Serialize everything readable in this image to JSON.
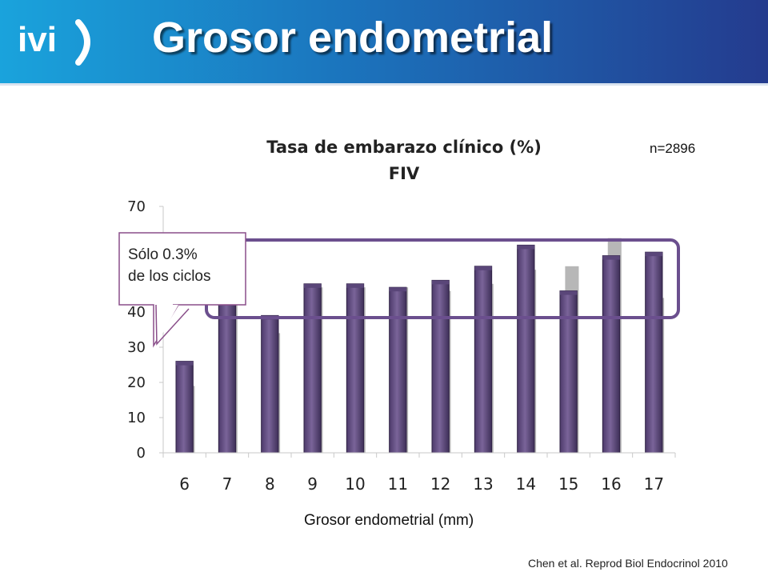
{
  "slide": {
    "title": "Grosor endometrial",
    "logo_text": "ivi",
    "citation": "Chen et al. Reprod Biol Endocrinol 2010",
    "sample_size": "n=2896",
    "callout": [
      "Sólo 0.3%",
      "de los ciclos"
    ],
    "colors": {
      "header_start": "#1aa3dc",
      "header_end": "#243b8e",
      "bar": "#7a6499",
      "shadow_bar": "#aaaaaa",
      "highlight": "#6b4f8e"
    }
  },
  "chart_data": {
    "type": "bar",
    "title": "Tasa de embarazo clínico (%)",
    "subtitle": "FIV",
    "xlabel": "Grosor endometrial (mm)",
    "ylabel": "",
    "categories": [
      "6",
      "7",
      "8",
      "9",
      "10",
      "11",
      "12",
      "13",
      "14",
      "15",
      "16",
      "17"
    ],
    "values": [
      26,
      43,
      39,
      48,
      48,
      47,
      49,
      53,
      59,
      46,
      56,
      57
    ],
    "background_values": [
      19,
      43,
      34,
      47,
      47,
      47,
      46,
      48,
      52,
      53,
      61,
      44
    ],
    "ylim": [
      0,
      70
    ],
    "yticks": [
      0,
      10,
      20,
      30,
      40,
      50,
      60,
      70
    ],
    "grid": false
  }
}
